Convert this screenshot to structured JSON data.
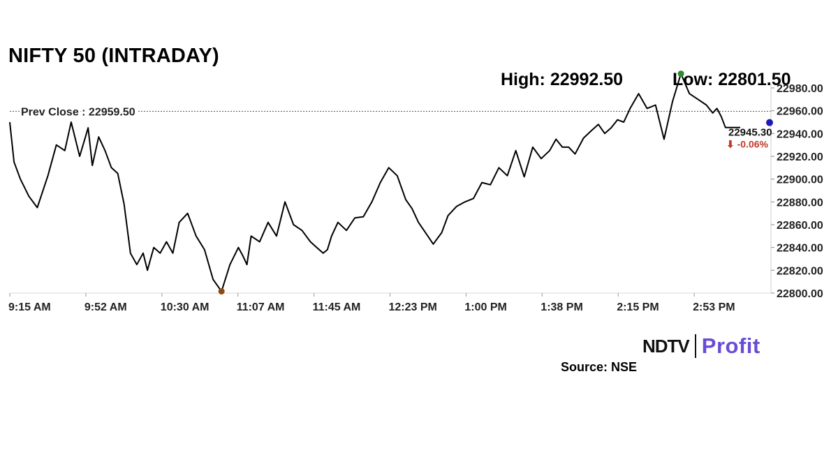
{
  "title": "NIFTY 50 (INTRADAY)",
  "stats": {
    "high": "High: 22992.50",
    "low": "Low: 22801.50"
  },
  "prev_close_label": "Prev Close : 22959.50",
  "last": {
    "price": "22945.30",
    "change": "⬇ -0.06%"
  },
  "source": "Source: NSE",
  "brand": {
    "left": "NDTV",
    "right": "Profit"
  },
  "colors": {
    "line": "#000000",
    "high_marker": "#2e8b2e",
    "low_marker": "#8b4a14",
    "last_marker": "#1a1ab8",
    "change": "#c0392b",
    "brand_profit": "#6a4bd6"
  },
  "chart_data": {
    "type": "line",
    "prev_close": 22959.5,
    "high": 22992.5,
    "low": 22801.5,
    "last": 22945.3,
    "ylim": [
      22800,
      22980
    ],
    "yticks": [
      "22800.00",
      "22820.00",
      "22840.00",
      "22860.00",
      "22880.00",
      "22900.00",
      "22920.00",
      "22940.00",
      "22960.00",
      "22980.00"
    ],
    "xticks": [
      "9:15 AM",
      "9:52 AM",
      "10:30 AM",
      "11:07 AM",
      "11:45 AM",
      "12:23 PM",
      "1:00 PM",
      "1:38 PM",
      "2:15 PM",
      "2:53 PM"
    ],
    "series": [
      {
        "x": [
          "9:15",
          "9:17",
          "9:20",
          "9:24",
          "9:28",
          "9:33",
          "9:37",
          "9:41",
          "9:44",
          "9:48",
          "9:52",
          "9:54",
          "9:57",
          "10:00",
          "10:03",
          "10:06",
          "10:09",
          "10:12",
          "10:15",
          "10:18",
          "10:20",
          "10:23",
          "10:26",
          "10:29",
          "10:32",
          "10:35",
          "10:39",
          "10:43",
          "10:47",
          "10:51",
          "10:55",
          "10:59",
          "11:03",
          "11:05",
          "11:07",
          "11:09",
          "11:13",
          "11:17",
          "11:21",
          "11:25",
          "11:29",
          "11:33",
          "11:37",
          "11:40",
          "11:43",
          "11:45",
          "11:47",
          "11:50",
          "11:54",
          "11:58",
          "12:02",
          "12:06",
          "12:10",
          "12:14",
          "12:18",
          "12:22",
          "12:25",
          "12:28",
          "12:31",
          "12:35",
          "12:39",
          "12:42",
          "12:46",
          "12:50",
          "12:54",
          "12:58",
          "13:02",
          "13:06",
          "13:10",
          "13:14",
          "13:18",
          "13:22",
          "13:26",
          "13:30",
          "13:33",
          "13:36",
          "13:39",
          "13:42",
          "13:46",
          "13:50",
          "13:53",
          "13:56",
          "13:59",
          "14:02",
          "14:05",
          "14:08",
          "14:12",
          "14:16",
          "14:20",
          "14:24",
          "14:28",
          "14:32",
          "14:36",
          "14:40",
          "14:44",
          "14:47",
          "14:49",
          "14:51",
          "14:53",
          "14:55",
          "14:57",
          "15:00"
        ],
        "y": [
          22950,
          22915,
          22900,
          22885,
          22875,
          22903,
          22930,
          22925,
          22950,
          22920,
          22945,
          22912,
          22937,
          22925,
          22910,
          22905,
          22878,
          22835,
          22825,
          22835,
          22820,
          22840,
          22835,
          22845,
          22835,
          22862,
          22870,
          22850,
          22838,
          22812,
          22801.5,
          22825,
          22840,
          22833,
          22825,
          22850,
          22845,
          22862,
          22850,
          22880,
          22860,
          22855,
          22845,
          22840,
          22835,
          22838,
          22850,
          22862,
          22855,
          22866,
          22867,
          22880,
          22897,
          22910,
          22903,
          22882,
          22874,
          22862,
          22854,
          22843,
          22853,
          22868,
          22876,
          22880,
          22883,
          22897,
          22895,
          22910,
          22903,
          22925,
          22902,
          22928,
          22918,
          22925,
          22935,
          22928,
          22928,
          22922,
          22936,
          22943,
          22948,
          22940,
          22945,
          22952,
          22950,
          22962,
          22975,
          22962,
          22965,
          22935,
          22968,
          22992.5,
          22975,
          22970,
          22965,
          22958,
          22962,
          22955,
          22945.3,
          22945.3,
          22945.3,
          22945.3
        ]
      }
    ]
  }
}
